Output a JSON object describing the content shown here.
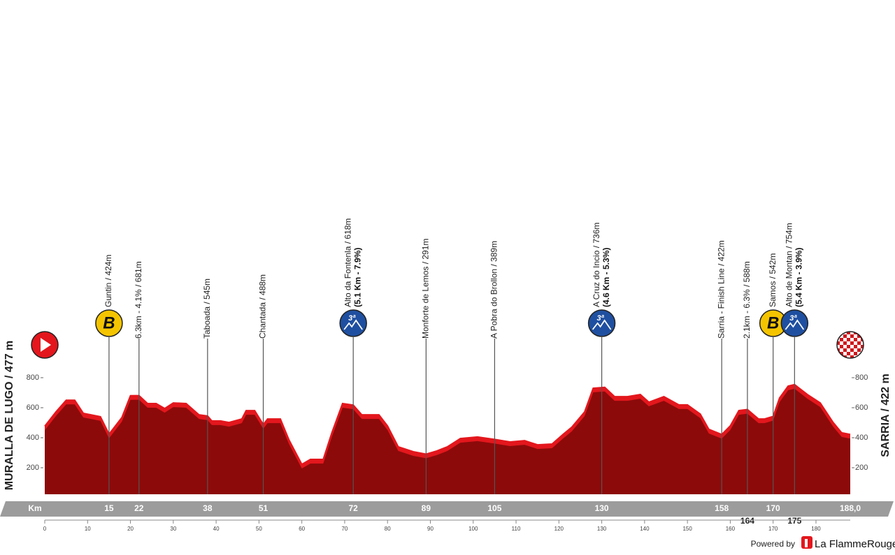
{
  "chart_data": {
    "type": "area",
    "start_label": "MURALLA DE LUGO / 477 m",
    "finish_label": "SARRIA / 422 m",
    "x": [
      0,
      2.6,
      5,
      7,
      9,
      13,
      15,
      18,
      20,
      22,
      24,
      26,
      28,
      30,
      33,
      36,
      38,
      39,
      41,
      43,
      46,
      47,
      49,
      51,
      52,
      55,
      57,
      60,
      62,
      65,
      67,
      69.5,
      72,
      74,
      78,
      80,
      82.5,
      86,
      89,
      91.5,
      94,
      97,
      101,
      105,
      108.6,
      112,
      115,
      118.4,
      121,
      123,
      126,
      128,
      130.7,
      133,
      136,
      139,
      141,
      144.5,
      148,
      150,
      153,
      155,
      158,
      160,
      162,
      164,
      166.6,
      168,
      170,
      171.5,
      173.5,
      175,
      178,
      181,
      184,
      186,
      188
    ],
    "values": [
      477,
      572,
      650,
      650,
      563,
      540,
      424,
      535,
      680,
      681,
      628,
      628,
      595,
      632,
      628,
      553,
      545,
      512,
      512,
      502,
      525,
      581,
      581,
      488,
      525,
      525,
      386,
      223,
      256,
      256,
      433,
      628,
      618,
      553,
      553,
      479,
      340,
      307,
      291,
      312,
      340,
      395,
      405,
      389,
      372,
      381,
      353,
      358,
      423,
      470,
      572,
      730,
      736,
      674,
      674,
      688,
      637,
      674,
      619,
      619,
      558,
      456,
      422,
      479,
      581,
      588,
      525,
      525,
      542,
      665,
      744,
      754,
      688,
      632,
      502,
      433,
      422
    ],
    "color": "#e3171d",
    "fill_color": "#8c0a0a",
    "xlim": [
      0,
      188
    ],
    "xticks": [
      0,
      10,
      20,
      30,
      40,
      50,
      60,
      70,
      80,
      90,
      100,
      110,
      120,
      130,
      140,
      150,
      160,
      170,
      180
    ],
    "ylim": [
      0,
      900
    ],
    "yticks": [
      200,
      400,
      600,
      800
    ],
    "km_label": "Km",
    "km_marks": [
      15,
      22,
      38,
      51,
      72,
      89,
      105,
      130,
      158,
      164,
      170,
      175,
      {
        "value": 188,
        "label": "188,0"
      }
    ],
    "points": [
      {
        "km": 15,
        "label": "Guntin / 424m",
        "badge": "B",
        "badge_color": "#f5c400"
      },
      {
        "km": 22,
        "label": "6.3km - 4.1% / 681m"
      },
      {
        "km": 38,
        "label": "Taboada / 545m"
      },
      {
        "km": 51,
        "label": "Chantada / 488m"
      },
      {
        "km": 72,
        "label": "Alto da Fontenla / 618m",
        "detail": "(5.1 Km - 7.9%)",
        "badge": "3ª",
        "badge_color": "#1f4fa0"
      },
      {
        "km": 89,
        "label": "Monforte de Lemos / 291m"
      },
      {
        "km": 105,
        "label": "A Pobra do Brollon / 389m"
      },
      {
        "km": 130,
        "label": "A Cruz do Incio / 736m",
        "detail": "(4.6 Km - 5.3%)",
        "badge": "3ª",
        "badge_color": "#1f4fa0"
      },
      {
        "km": 158,
        "label": "Sarria - Finish Line / 422m"
      },
      {
        "km": 164,
        "label": "2.1km - 6.3% / 588m"
      },
      {
        "km": 170,
        "label": "Samos / 542m",
        "badge": "B",
        "badge_color": "#f5c400"
      },
      {
        "km": 175,
        "label": "Alto de Montan / 754m",
        "detail": "(5.4 Km - 3.9%)",
        "badge": "3ª",
        "badge_color": "#1f4fa0"
      }
    ]
  },
  "footer": {
    "powered_by": "Powered by",
    "brand": "La FlammeRouge"
  }
}
